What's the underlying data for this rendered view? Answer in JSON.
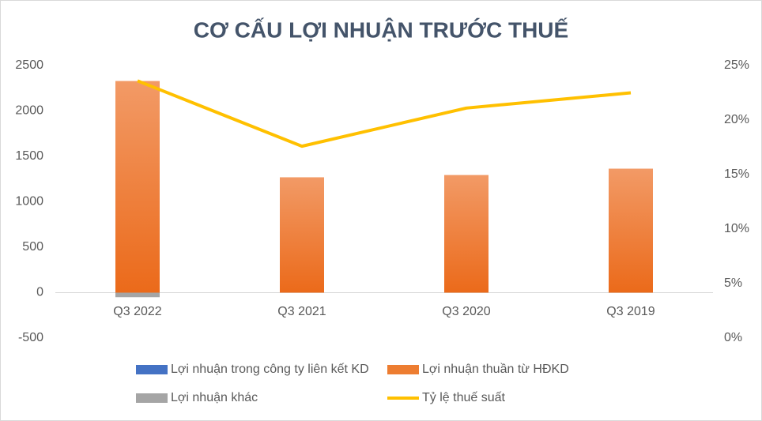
{
  "chart_data": {
    "type": "bar",
    "stacked": true,
    "title": "CƠ CẤU LỢI NHUẬN TRƯỚC THUẾ",
    "categories": [
      "Q3 2022",
      "Q3 2021",
      "Q3 2020",
      "Q3 2019"
    ],
    "series": [
      {
        "name": "Lợi nhuận trong công ty liên kết KD",
        "color": "#4472c4",
        "values": [
          0,
          0,
          0,
          0
        ]
      },
      {
        "name": "Lợi nhuận thuần từ HĐKD",
        "color": "#ed7d31",
        "values": [
          2330,
          1270,
          1295,
          1365
        ]
      },
      {
        "name": "Lợi nhuận khác",
        "color": "#a5a5a5",
        "values": [
          -50,
          0,
          0,
          0
        ]
      },
      {
        "name": "Tỷ lệ thuế suất",
        "color": "#ffc000",
        "type": "line",
        "axis": "y2",
        "values": [
          23.6,
          17.6,
          21.1,
          22.5
        ]
      }
    ],
    "ylim": [
      -500,
      2500
    ],
    "yticks": [
      -500,
      0,
      500,
      1000,
      1500,
      2000,
      2500
    ],
    "y2lim": [
      0,
      25
    ],
    "y2ticks": [
      {
        "value": 0,
        "label": "0%"
      },
      {
        "value": 5,
        "label": "5%"
      },
      {
        "value": 10,
        "label": "10%"
      },
      {
        "value": 15,
        "label": "15%"
      },
      {
        "value": 20,
        "label": "20%"
      },
      {
        "value": 25,
        "label": "25%"
      }
    ],
    "grid": false,
    "legend": "bottom"
  }
}
